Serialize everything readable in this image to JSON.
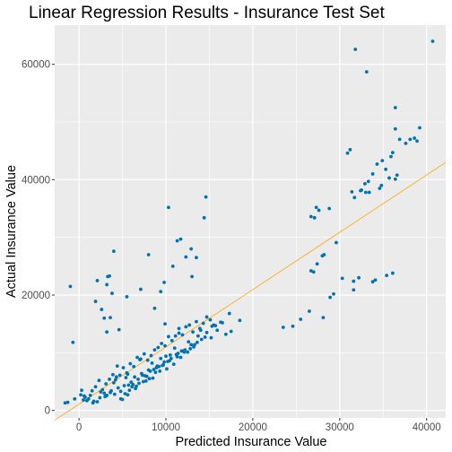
{
  "chart_data": {
    "type": "scatter",
    "title": "Linear Regression Results - Insurance Test Set",
    "xlabel": "Predicted Insurance Value",
    "ylabel": "Actual Insurance Value",
    "xlim": [
      -2800,
      42200
    ],
    "ylim": [
      -1300,
      66800
    ],
    "x_ticks": [
      0,
      10000,
      20000,
      30000,
      40000
    ],
    "x_tick_labels": [
      "0",
      "10000",
      "20000",
      "30000",
      "40000"
    ],
    "y_ticks": [
      0,
      20000,
      40000,
      60000
    ],
    "y_tick_labels": [
      "0",
      "20000",
      "40000",
      "60000"
    ],
    "grid": true,
    "background": "#ebebeb",
    "grid_color": "#ffffff",
    "point_color": "#0072b2",
    "line_color": "#ffa500",
    "fit_line": {
      "x": [
        -2800,
        42200
      ],
      "y": [
        -1700,
        43000
      ]
    },
    "series": [
      {
        "x": [
          -1000,
          -700,
          1900,
          2100,
          2900,
          3200,
          3300,
          3500,
          3600,
          4000,
          4600,
          5500,
          7100,
          8700,
          9800,
          10300,
          10800,
          11300,
          11700,
          12300,
          12900,
          13500,
          14400,
          14600,
          14700,
          9400,
          8000,
          3200,
          2600,
          3800,
          9900,
          13000,
          11500,
          15300,
          16500,
          16900,
          17500,
          18500,
          -1600,
          23500,
          24600,
          25500,
          26500,
          26700,
          27100,
          27300,
          27600,
          28100,
          28800,
          28900,
          29300,
          31400,
          31600,
          31700,
          32500,
          33000,
          33400,
          33800,
          34100,
          34600,
          34800,
          35400,
          36100,
          36400,
          36600,
          26700,
          27000,
          27400,
          28000,
          28200,
          29600,
          30300,
          30900,
          31200,
          31600,
          32200,
          32400,
          32900,
          33300,
          33800,
          34300,
          34900,
          35300,
          35700,
          35900,
          36100,
          36400,
          36900,
          37600,
          38100,
          38600,
          38900,
          39200,
          31800,
          33100,
          36400,
          40700,
          200,
          700,
          1100,
          1500,
          1900,
          2300,
          2700,
          3100,
          3500,
          3900,
          4300,
          4700,
          5100,
          5500,
          5900,
          6300,
          6700,
          7100,
          7500,
          7900,
          8300,
          8700,
          9100,
          9500,
          9900,
          10300,
          10700,
          11100,
          11500,
          11900,
          12300,
          12700,
          13100,
          13500,
          13900,
          14300,
          14700,
          15100,
          15500,
          15900,
          500,
          1300,
          2100,
          2900,
          3700,
          4500,
          5300,
          6100,
          6900,
          7700,
          8500,
          9300,
          10100,
          10900,
          11700,
          12500,
          13300,
          14100,
          300,
          900,
          1600,
          2400,
          3200,
          4000,
          4800,
          5600,
          6400,
          7200,
          8000,
          8800,
          9600,
          10400,
          11200,
          12000,
          12800,
          13600,
          14500,
          4200,
          5000,
          5800,
          6600,
          7400,
          8200,
          9000,
          9800,
          10600,
          11400,
          12200,
          6000,
          7000,
          8600,
          4400,
          5200,
          10000,
          11000,
          12600,
          9200,
          7800,
          5600,
          6800,
          3000,
          3600,
          4800,
          5400,
          6200,
          7600,
          8400,
          9400,
          10200,
          11800,
          13200,
          14000,
          15200,
          -1300,
          -500,
          600,
          1700,
          2500,
          4100,
          5700,
          6500,
          7300,
          8100,
          8900,
          9700,
          10500,
          11300,
          12100,
          12900,
          13700,
          15700,
          16300,
          17300
        ],
        "y": [
          21500,
          11800,
          18900,
          22500,
          16000,
          21800,
          23200,
          23300,
          16100,
          27600,
          14000,
          19700,
          21000,
          17700,
          22200,
          35200,
          25000,
          29400,
          29700,
          26600,
          28000,
          26500,
          33400,
          37000,
          13500,
          20600,
          27000,
          13600,
          17500,
          20300,
          15000,
          23200,
          14200,
          14600,
          15200,
          13200,
          13700,
          15600,
          1300,
          14400,
          14600,
          15800,
          17200,
          33600,
          33400,
          35200,
          34700,
          16100,
          35000,
          19600,
          20200,
          37900,
          20900,
          36900,
          38200,
          37800,
          37800,
          22300,
          22600,
          38500,
          39000,
          23400,
          23800,
          40100,
          40800,
          24200,
          24000,
          25400,
          26800,
          27000,
          29100,
          22900,
          44600,
          45200,
          22400,
          23000,
          38100,
          39300,
          39700,
          41000,
          42700,
          43300,
          41800,
          40300,
          44000,
          44700,
          48800,
          47000,
          46300,
          47000,
          47200,
          46700,
          49000,
          62600,
          58700,
          52500,
          64000,
          2700,
          2300,
          2000,
          3400,
          4100,
          5200,
          3600,
          4600,
          5400,
          6200,
          5800,
          6100,
          7400,
          6500,
          8100,
          7600,
          9200,
          8900,
          9800,
          8700,
          9500,
          10500,
          10900,
          11600,
          11200,
          12800,
          12100,
          12900,
          13400,
          13100,
          14500,
          14800,
          13600,
          15400,
          14200,
          15100,
          16200,
          15700,
          14800,
          13900,
          1800,
          2600,
          1500,
          3000,
          3400,
          3900,
          2900,
          4100,
          4700,
          5100,
          5600,
          6800,
          7200,
          8000,
          9200,
          10100,
          11400,
          12300,
          3500,
          1700,
          1300,
          2200,
          2600,
          4800,
          3300,
          2700,
          5800,
          6400,
          7000,
          6600,
          7800,
          8600,
          9700,
          10300,
          10700,
          11800,
          12700,
          5300,
          1900,
          3500,
          4200,
          5000,
          6800,
          7700,
          8400,
          9000,
          9900,
          10500,
          4900,
          8800,
          7100,
          7700,
          4300,
          9400,
          10800,
          11900,
          7600,
          5900,
          6300,
          5400,
          2400,
          3100,
          2000,
          5700,
          4500,
          6000,
          8200,
          9000,
          8500,
          10300,
          11000,
          13900,
          12600,
          1400,
          2000,
          2500,
          1600,
          3200,
          2800,
          4400,
          3800,
          6100,
          5500,
          7400,
          7900,
          9600,
          9300,
          10100,
          11400,
          12900,
          14700,
          15300,
          16800
        ]
      }
    ]
  }
}
